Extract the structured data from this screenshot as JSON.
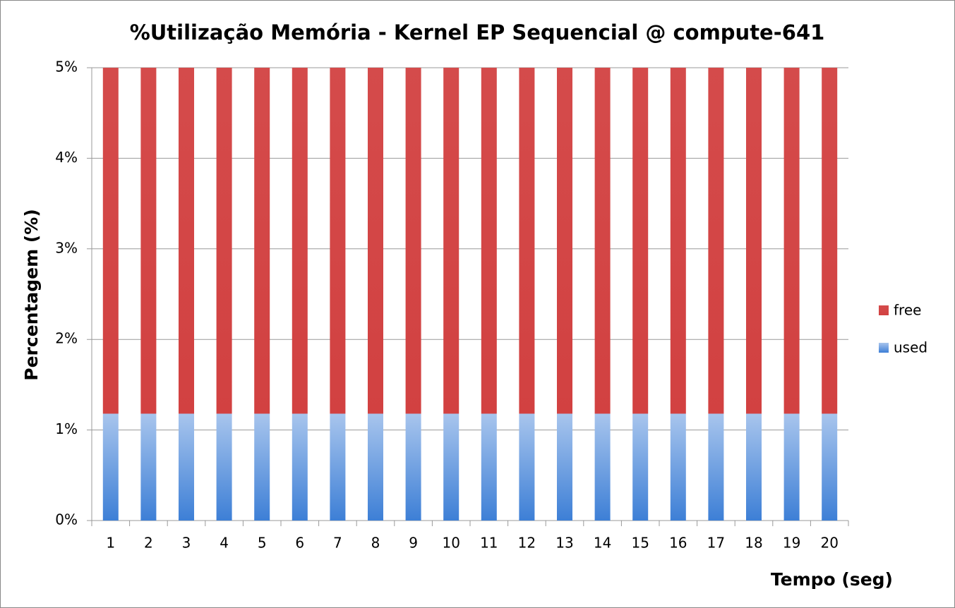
{
  "chart_data": {
    "type": "stacked_bar",
    "title": "%Utilização Memória - Kernel EP Sequencial @ compute-641",
    "x_label": "Tempo (seg)",
    "y_label": "Percentagem (%)",
    "categories": [
      1,
      2,
      3,
      4,
      5,
      6,
      7,
      8,
      9,
      10,
      11,
      12,
      13,
      14,
      15,
      16,
      17,
      18,
      19,
      20
    ],
    "series": [
      {
        "name": "used",
        "color": "#3d7fd6",
        "values": [
          1.18,
          1.18,
          1.18,
          1.18,
          1.18,
          1.18,
          1.18,
          1.18,
          1.18,
          1.18,
          1.18,
          1.18,
          1.18,
          1.18,
          1.18,
          1.18,
          1.18,
          1.18,
          1.18,
          1.18
        ]
      },
      {
        "name": "free",
        "color": "#d24141",
        "values": [
          3.82,
          3.82,
          3.82,
          3.82,
          3.82,
          3.82,
          3.82,
          3.82,
          3.82,
          3.82,
          3.82,
          3.82,
          3.82,
          3.82,
          3.82,
          3.82,
          3.82,
          3.82,
          3.82,
          3.82
        ]
      }
    ],
    "ylim": [
      0,
      5
    ],
    "yticks": [
      {
        "value": 0,
        "label": "0%"
      },
      {
        "value": 1,
        "label": "1%"
      },
      {
        "value": 2,
        "label": "2%"
      },
      {
        "value": 3,
        "label": "3%"
      },
      {
        "value": 4,
        "label": "4%"
      },
      {
        "value": 5,
        "label": "5%"
      }
    ],
    "grid": true,
    "legend": "right"
  }
}
